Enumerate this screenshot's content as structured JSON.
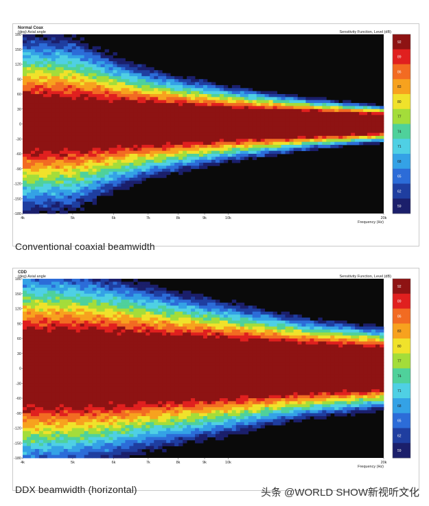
{
  "chart_data": [
    {
      "type": "heatmap",
      "title": "Normal Coax",
      "ylabel": "(deg) Axial angle",
      "xlabel": "Frequency (Hz)",
      "colorbar_label": "Sensitivity Function, Level (dB)",
      "x_ticks": [
        "4k",
        "5k",
        "6k",
        "7k",
        "8k",
        "9k",
        "10k",
        "20k"
      ],
      "x_tick_values": [
        4000,
        5000,
        6000,
        7000,
        8000,
        9000,
        10000,
        20000
      ],
      "xlim": [
        4000,
        20000
      ],
      "y_ticks": [
        "180",
        "150",
        "120",
        "90",
        "60",
        "30",
        "0",
        "-30",
        "-60",
        "-90",
        "-120",
        "-150",
        "-180"
      ],
      "ylim": [
        -180,
        180
      ],
      "colorbar_ticks": [
        "92",
        "89",
        "86",
        "83",
        "80",
        "77",
        "74",
        "71",
        "68",
        "65",
        "62",
        "59"
      ],
      "colorbar_range": [
        59,
        92
      ],
      "beam": {
        "mainlobe_half_width_deg": [
          [
            4000,
            50
          ],
          [
            5000,
            45
          ],
          [
            6000,
            41
          ],
          [
            7000,
            38
          ],
          [
            8000,
            35
          ],
          [
            10000,
            30
          ],
          [
            14000,
            24
          ],
          [
            20000,
            18
          ]
        ],
        "spread_deg": [
          [
            4000,
            150
          ],
          [
            5000,
            150
          ],
          [
            6000,
            110
          ],
          [
            7000,
            85
          ],
          [
            8000,
            72
          ],
          [
            10000,
            55
          ],
          [
            14000,
            35
          ],
          [
            20000,
            22
          ]
        ]
      }
    },
    {
      "type": "heatmap",
      "title": "CDD",
      "ylabel": "(deg) Axial angle",
      "xlabel": "Frequency (Hz)",
      "colorbar_label": "Sensitivity Function, Level (dB)",
      "x_ticks": [
        "4k",
        "5k",
        "6k",
        "7k",
        "8k",
        "9k",
        "10k",
        "20k"
      ],
      "x_tick_values": [
        4000,
        5000,
        6000,
        7000,
        8000,
        9000,
        10000,
        20000
      ],
      "xlim": [
        4000,
        20000
      ],
      "y_ticks": [
        "180",
        "150",
        "120",
        "90",
        "60",
        "30",
        "0",
        "-30",
        "-60",
        "-90",
        "-120",
        "-150",
        "-180"
      ],
      "ylim": [
        -180,
        180
      ],
      "colorbar_ticks": [
        "92",
        "89",
        "86",
        "83",
        "80",
        "77",
        "74",
        "71",
        "68",
        "65",
        "62",
        "59"
      ],
      "colorbar_range": [
        59,
        92
      ],
      "beam": {
        "mainlobe_half_width_deg": [
          [
            4000,
            70
          ],
          [
            5000,
            70
          ],
          [
            6000,
            67
          ],
          [
            7000,
            63
          ],
          [
            8000,
            60
          ],
          [
            10000,
            56
          ],
          [
            14000,
            47
          ],
          [
            20000,
            40
          ]
        ],
        "spread_deg": [
          [
            4000,
            160
          ],
          [
            5000,
            150
          ],
          [
            6000,
            135
          ],
          [
            7000,
            120
          ],
          [
            8000,
            110
          ],
          [
            10000,
            90
          ],
          [
            14000,
            65
          ],
          [
            20000,
            50
          ]
        ]
      }
    }
  ],
  "captions": {
    "top": "Conventional coaxial beamwidth",
    "bottom": "DDX beamwidth (horizontal)"
  },
  "watermark": "头条 @WORLD SHOW新视听文化",
  "colors": {
    "background_low": "#0a0a0a",
    "scale": [
      "#1b1f6b",
      "#1f3ea0",
      "#2c6cd8",
      "#34a2e6",
      "#4fd0e4",
      "#4fd19b",
      "#a4dd3a",
      "#f0e22b",
      "#f7a21e",
      "#f26b22",
      "#e0201f",
      "#8e1313"
    ]
  }
}
